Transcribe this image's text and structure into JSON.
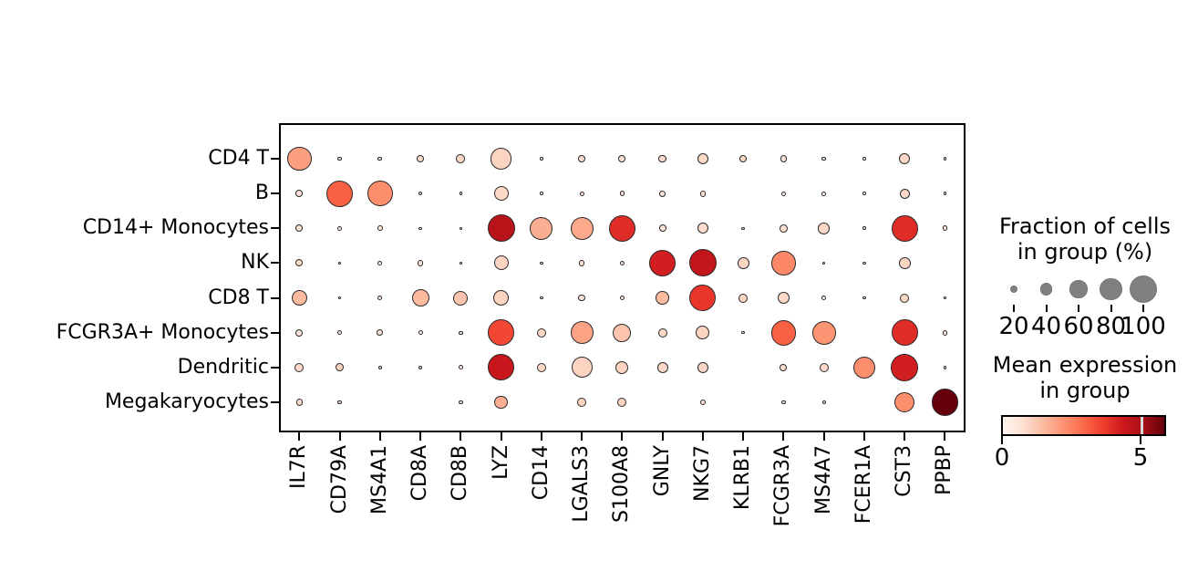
{
  "figure": {
    "background": "#ffffff",
    "plot_border_color": "#000000",
    "dot_edge_color": "#2b2b2b",
    "size_legend_dot_color": "#808080"
  },
  "chart_data": {
    "type": "scatter",
    "subtype": "dotplot",
    "title": "",
    "xlabel": "",
    "ylabel": "",
    "grid": false,
    "x_categories": [
      "IL7R",
      "CD79A",
      "MS4A1",
      "CD8A",
      "CD8B",
      "LYZ",
      "CD14",
      "LGALS3",
      "S100A8",
      "GNLY",
      "NKG7",
      "KLRB1",
      "FCGR3A",
      "MS4A7",
      "FCER1A",
      "CST3",
      "PPBP"
    ],
    "y_categories": [
      "CD4 T",
      "B",
      "CD14+ Monocytes",
      "NK",
      "CD8 T",
      "FCGR3A+ Monocytes",
      "Dendritic",
      "Megakaryocytes"
    ],
    "series": [
      {
        "name": "CD4 T",
        "fraction": [
          88,
          7,
          7,
          18,
          25,
          75,
          3,
          18,
          18,
          22,
          33,
          18,
          15,
          7,
          2,
          33,
          2
        ],
        "mean_expression": [
          2.0,
          0.6,
          0.5,
          0.8,
          0.9,
          1.0,
          0.4,
          0.8,
          0.7,
          0.8,
          0.9,
          0.9,
          0.6,
          0.5,
          0.3,
          0.9,
          0.2
        ]
      },
      {
        "name": "B",
        "fraction": [
          18,
          97,
          92,
          5,
          2,
          48,
          2,
          8,
          10,
          14,
          14,
          0,
          7,
          7,
          2,
          30,
          2
        ],
        "mean_expression": [
          0.7,
          3.1,
          2.3,
          0.5,
          0.3,
          0.9,
          0.3,
          0.6,
          0.6,
          0.6,
          0.6,
          0,
          0.5,
          0.5,
          0.4,
          0.9,
          0.2
        ]
      },
      {
        "name": "CD14+ Monocytes",
        "fraction": [
          18,
          7,
          10,
          2,
          2,
          100,
          81,
          81,
          97,
          18,
          33,
          2,
          22,
          36,
          3,
          96,
          10
        ],
        "mean_expression": [
          0.6,
          0.5,
          0.5,
          0.3,
          0.2,
          4.8,
          1.7,
          1.8,
          4.0,
          0.6,
          0.8,
          0.2,
          0.7,
          0.9,
          0.3,
          4.0,
          0.5
        ]
      },
      {
        "name": "NK",
        "fraction": [
          18,
          2,
          7,
          14,
          2,
          48,
          2,
          14,
          10,
          97,
          100,
          36,
          88,
          2,
          2,
          36,
          0
        ],
        "mean_expression": [
          0.7,
          0.3,
          0.5,
          0.6,
          0.3,
          1.0,
          0.2,
          0.6,
          0.6,
          4.3,
          4.6,
          1.0,
          2.4,
          0.3,
          0.3,
          1.0,
          0
        ]
      },
      {
        "name": "CD8 T",
        "fraction": [
          52,
          3,
          7,
          59,
          48,
          52,
          3,
          18,
          7,
          44,
          97,
          26,
          36,
          7,
          2,
          26,
          2
        ],
        "mean_expression": [
          1.5,
          0.3,
          0.5,
          1.5,
          1.3,
          1.0,
          0.3,
          0.7,
          0.5,
          1.5,
          3.8,
          1.0,
          0.9,
          0.4,
          0.3,
          0.9,
          0.2
        ]
      },
      {
        "name": "FCGR3A+ Monocytes",
        "fraction": [
          18,
          8,
          14,
          7,
          5,
          96,
          26,
          81,
          63,
          26,
          44,
          2,
          92,
          85,
          0,
          96,
          10
        ],
        "mean_expression": [
          0.6,
          0.5,
          0.6,
          0.4,
          0.3,
          3.5,
          0.9,
          1.9,
          1.3,
          0.9,
          1.0,
          0.2,
          3.1,
          2.2,
          0,
          4.0,
          0.5
        ]
      },
      {
        "name": "Dendritic",
        "fraction": [
          26,
          22,
          5,
          5,
          7,
          96,
          26,
          74,
          41,
          33,
          33,
          0,
          18,
          26,
          78,
          100,
          2
        ],
        "mean_expression": [
          0.9,
          1.0,
          0.5,
          0.4,
          0.5,
          4.5,
          0.9,
          1.0,
          1.0,
          0.9,
          0.9,
          0,
          0.8,
          0.9,
          2.3,
          4.3,
          0.3
        ]
      },
      {
        "name": "Megakaryocytes",
        "fraction": [
          15,
          5,
          0,
          0,
          5,
          44,
          0,
          26,
          26,
          0,
          14,
          0,
          5,
          5,
          0,
          70,
          97
        ],
        "mean_expression": [
          0.8,
          0.6,
          0,
          0,
          0.5,
          1.7,
          0,
          1.0,
          1.0,
          0,
          0.8,
          0,
          0.5,
          0.5,
          0,
          2.3,
          5.9
        ]
      }
    ],
    "size_legend": {
      "title_line1": "Fraction of cells",
      "title_line2": "in group (%)",
      "values": [
        20,
        40,
        60,
        80,
        100
      ]
    },
    "color_legend": {
      "title_line1": "Mean expression",
      "title_line2": "in group",
      "tick_labels": [
        "0",
        "5"
      ],
      "vmin": 0,
      "vmax": 5.9,
      "colormap": "Reds",
      "colormap_stops": [
        "#fff5f0",
        "#fee0d2",
        "#fcbba1",
        "#fc9272",
        "#fb6a4a",
        "#ef3b2c",
        "#cb181d",
        "#a50f15",
        "#67000d"
      ]
    }
  }
}
